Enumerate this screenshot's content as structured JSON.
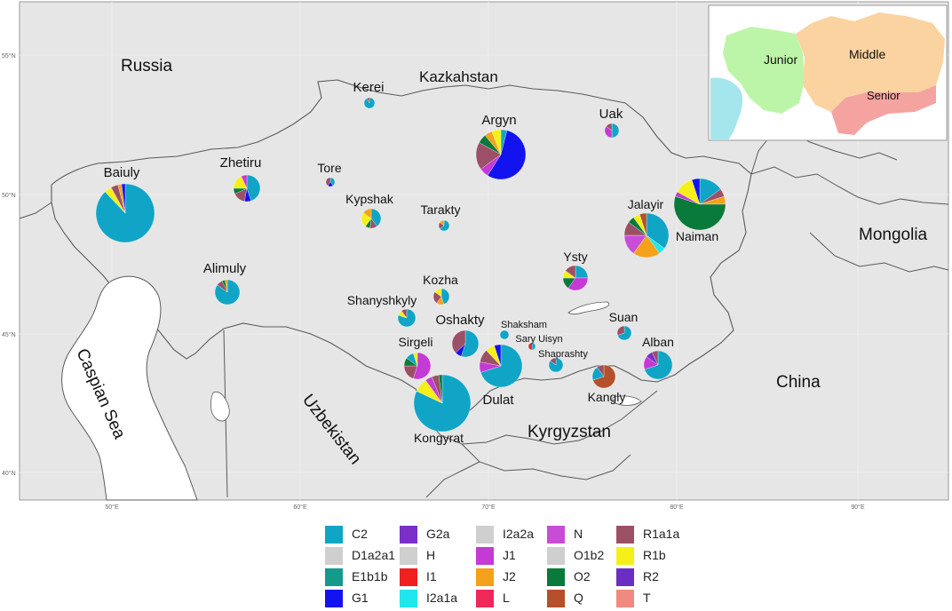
{
  "map": {
    "country_labels": [
      {
        "id": "russia",
        "text": "Russia"
      },
      {
        "id": "kazakhstan",
        "text": "Kazkahstan"
      },
      {
        "id": "mongolia",
        "text": "Mongolia"
      },
      {
        "id": "china",
        "text": "China"
      },
      {
        "id": "kyrgyzstan",
        "text": "Kyrgyzstan"
      },
      {
        "id": "uzbekistan",
        "text": "Uzbekistan"
      },
      {
        "id": "caspian",
        "text": "Caspian Sea"
      }
    ],
    "lat_ticks": [
      "55°N",
      "50°N",
      "45°N",
      "40°N"
    ],
    "lon_ticks": [
      "50°E",
      "60°E",
      "70°E",
      "80°E",
      "90°E"
    ]
  },
  "inset": {
    "zones": [
      {
        "id": "junior",
        "label": "Junior",
        "color": "#bdf5a8"
      },
      {
        "id": "middle",
        "label": "Middle",
        "color": "#fad3a0"
      },
      {
        "id": "senior",
        "label": "Senior",
        "color": "#f4a3a0"
      }
    ]
  },
  "haplogroups": [
    {
      "id": "C2",
      "label": "C2",
      "color": "#10a5c6"
    },
    {
      "id": "D1a2a1",
      "label": "D1a2a1",
      "color": "#cfcfcf"
    },
    {
      "id": "E1b1b",
      "label": "E1b1b",
      "color": "#139a8a"
    },
    {
      "id": "G1",
      "label": "G1",
      "color": "#1313f0"
    },
    {
      "id": "G2a",
      "label": "G2a",
      "color": "#7a2fc9"
    },
    {
      "id": "H",
      "label": "H",
      "color": "#cfcfcf"
    },
    {
      "id": "I1",
      "label": "I1",
      "color": "#f02020"
    },
    {
      "id": "I2a1a",
      "label": "I2a1a",
      "color": "#20e6ee"
    },
    {
      "id": "I2a2a",
      "label": "I2a2a",
      "color": "#cfcfcf"
    },
    {
      "id": "J1",
      "label": "J1",
      "color": "#c43ad4"
    },
    {
      "id": "J2",
      "label": "J2",
      "color": "#f5a11a"
    },
    {
      "id": "L",
      "label": "L",
      "color": "#f0285a"
    },
    {
      "id": "N",
      "label": "N",
      "color": "#c84dd6"
    },
    {
      "id": "O1b2",
      "label": "O1b2",
      "color": "#cfcfcf"
    },
    {
      "id": "O2",
      "label": "O2",
      "color": "#0a7a3a"
    },
    {
      "id": "Q",
      "label": "Q",
      "color": "#b5502a"
    },
    {
      "id": "R1a1a",
      "label": "R1a1a",
      "color": "#9c5068"
    },
    {
      "id": "R1b",
      "label": "R1b",
      "color": "#f5f018"
    },
    {
      "id": "R2",
      "label": "R2",
      "color": "#6a2fc0"
    },
    {
      "id": "T",
      "label": "T",
      "color": "#f08a80"
    }
  ],
  "tribes": [
    {
      "name": "Baiuly",
      "slices": [
        [
          "C2",
          88
        ],
        [
          "R1b",
          4
        ],
        [
          "R1a1a",
          4
        ],
        [
          "J2",
          2
        ],
        [
          "G1",
          2
        ]
      ]
    },
    {
      "name": "Zhetiru",
      "slices": [
        [
          "C2",
          45
        ],
        [
          "G1",
          8
        ],
        [
          "R1a1a",
          15
        ],
        [
          "O2",
          7
        ],
        [
          "R1b",
          18
        ],
        [
          "J1",
          7
        ]
      ]
    },
    {
      "name": "Tore",
      "slices": [
        [
          "C2",
          40
        ],
        [
          "G1",
          20
        ],
        [
          "R1a1a",
          40
        ]
      ]
    },
    {
      "name": "Kerei",
      "slices": [
        [
          "C2",
          92
        ],
        [
          "R1a1a",
          8
        ]
      ]
    },
    {
      "name": "Kypshak",
      "slices": [
        [
          "C2",
          40
        ],
        [
          "R1a1a",
          12
        ],
        [
          "O2",
          8
        ],
        [
          "R1b",
          25
        ],
        [
          "J2",
          15
        ]
      ]
    },
    {
      "name": "Tarakty",
      "slices": [
        [
          "C2",
          65
        ],
        [
          "R1a1a",
          20
        ],
        [
          "J2",
          15
        ]
      ]
    },
    {
      "name": "Argyn",
      "slices": [
        [
          "C2",
          4
        ],
        [
          "G1",
          55
        ],
        [
          "J1",
          6
        ],
        [
          "R1a1a",
          18
        ],
        [
          "O2",
          6
        ],
        [
          "J2",
          5
        ],
        [
          "R1b",
          6
        ]
      ]
    },
    {
      "name": "Uak",
      "slices": [
        [
          "C2",
          50
        ],
        [
          "J1",
          35
        ],
        [
          "R1a1a",
          15
        ]
      ]
    },
    {
      "name": "Naiman",
      "slices": [
        [
          "C2",
          15
        ],
        [
          "R1a1a",
          5
        ],
        [
          "J2",
          5
        ],
        [
          "O2",
          55
        ],
        [
          "J1",
          3
        ],
        [
          "R1b",
          12
        ],
        [
          "G1",
          5
        ]
      ]
    },
    {
      "name": "Jalayir",
      "slices": [
        [
          "C2",
          35
        ],
        [
          "I2a1a",
          5
        ],
        [
          "J2",
          20
        ],
        [
          "N",
          15
        ],
        [
          "R1a1a",
          10
        ],
        [
          "O2",
          5
        ],
        [
          "R1b",
          5
        ],
        [
          "Q",
          5
        ]
      ]
    },
    {
      "name": "Alimuly",
      "slices": [
        [
          "C2",
          85
        ],
        [
          "R1a1a",
          8
        ],
        [
          "O2",
          4
        ],
        [
          "J2",
          3
        ]
      ]
    },
    {
      "name": "Kozha",
      "slices": [
        [
          "C2",
          45
        ],
        [
          "J2",
          15
        ],
        [
          "R1a1a",
          25
        ],
        [
          "R1b",
          15
        ]
      ]
    },
    {
      "name": "Ysty",
      "slices": [
        [
          "C2",
          25
        ],
        [
          "J1",
          35
        ],
        [
          "O2",
          15
        ],
        [
          "R1b",
          10
        ],
        [
          "R1a1a",
          15
        ]
      ]
    },
    {
      "name": "Shanyshkyly",
      "slices": [
        [
          "C2",
          80
        ],
        [
          "R1b",
          10
        ],
        [
          "R1a1a",
          10
        ]
      ]
    },
    {
      "name": "Oshakty",
      "slices": [
        [
          "C2",
          55
        ],
        [
          "G1",
          8
        ],
        [
          "R1a1a",
          37
        ]
      ]
    },
    {
      "name": "Shaksham",
      "slices": [
        [
          "C2",
          100
        ]
      ]
    },
    {
      "name": "Sary Uisyn",
      "slices": [
        [
          "C2",
          50
        ],
        [
          "I1",
          50
        ]
      ]
    },
    {
      "name": "Shaprashty",
      "slices": [
        [
          "C2",
          85
        ],
        [
          "R1a1a",
          15
        ]
      ]
    },
    {
      "name": "Suan",
      "slices": [
        [
          "C2",
          70
        ],
        [
          "R1a1a",
          30
        ]
      ]
    },
    {
      "name": "Alban",
      "slices": [
        [
          "C2",
          70
        ],
        [
          "J1",
          15
        ],
        [
          "G2a",
          8
        ],
        [
          "R1a1a",
          7
        ]
      ]
    },
    {
      "name": "Sirgeli",
      "slices": [
        [
          "J1",
          55
        ],
        [
          "R1a1a",
          20
        ],
        [
          "O2",
          10
        ],
        [
          "C2",
          10
        ],
        [
          "R1b",
          5
        ]
      ]
    },
    {
      "name": "Dulat",
      "slices": [
        [
          "C2",
          70
        ],
        [
          "J1",
          8
        ],
        [
          "R1a1a",
          10
        ],
        [
          "R1b",
          7
        ],
        [
          "G1",
          5
        ]
      ]
    },
    {
      "name": "Kangly",
      "slices": [
        [
          "Q",
          70
        ],
        [
          "C2",
          20
        ],
        [
          "R1a1a",
          10
        ]
      ]
    },
    {
      "name": "Kongyrat",
      "slices": [
        [
          "C2",
          82
        ],
        [
          "R1b",
          8
        ],
        [
          "J1",
          4
        ],
        [
          "R1a1a",
          4
        ],
        [
          "O2",
          2
        ]
      ]
    }
  ]
}
